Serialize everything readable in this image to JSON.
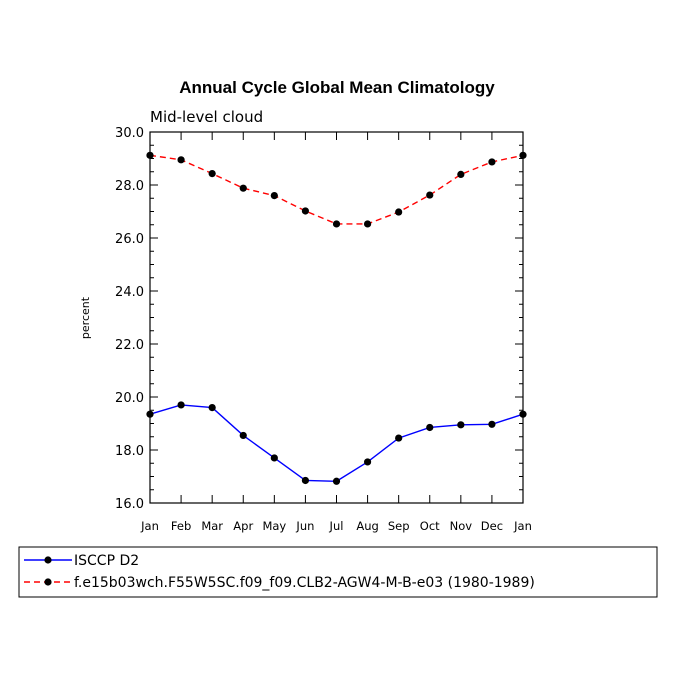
{
  "chart_data": {
    "type": "line",
    "title": "Annual Cycle Global Mean Climatology",
    "subtitle": "Mid-level cloud",
    "xlabel": "",
    "ylabel": "percent",
    "categories": [
      "Jan",
      "Feb",
      "Mar",
      "Apr",
      "May",
      "Jun",
      "Jul",
      "Aug",
      "Sep",
      "Oct",
      "Nov",
      "Dec",
      "Jan"
    ],
    "ylim": [
      16.0,
      30.0
    ],
    "yticks": [
      "16.0",
      "18.0",
      "20.0",
      "22.0",
      "24.0",
      "26.0",
      "28.0",
      "30.0"
    ],
    "series": [
      {
        "name": "ISCCP D2",
        "color": "#0000ff",
        "dash": "solid",
        "values": [
          19.35,
          19.7,
          19.6,
          18.55,
          17.7,
          16.85,
          16.82,
          17.55,
          18.45,
          18.85,
          18.95,
          18.97,
          19.35
        ]
      },
      {
        "name": "f.e15b03wch.F55W5SC.f09_f09.CLB2-AGW4-M-B-e03 (1980-1989)",
        "color": "#ff0000",
        "dash": "dashed",
        "values": [
          29.12,
          28.95,
          28.43,
          27.88,
          27.6,
          27.02,
          26.53,
          26.53,
          26.98,
          27.62,
          28.4,
          28.87,
          29.12
        ]
      }
    ]
  }
}
